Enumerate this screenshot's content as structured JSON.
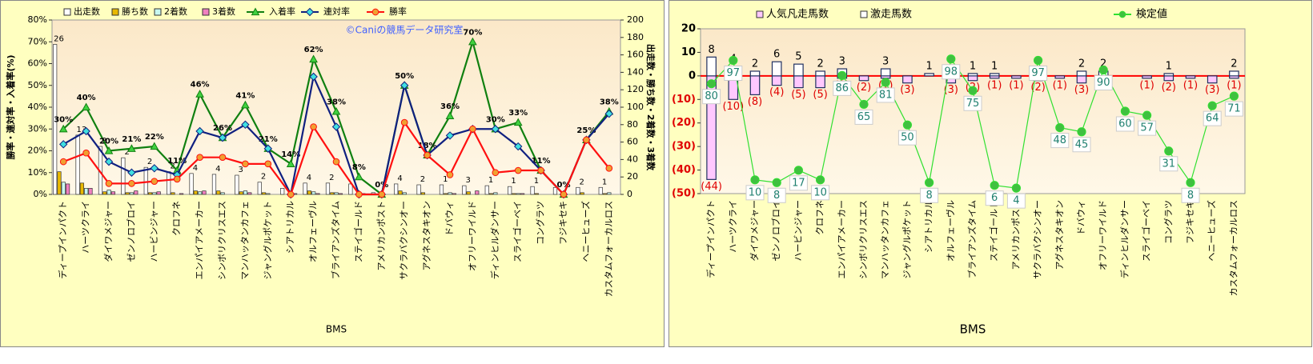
{
  "chart_data": [
    {
      "type": "combo",
      "watermark": "©Caniの競馬データ研究室",
      "xlabel": "BMS",
      "ylabel": "勝率・連対率・入着率(%)",
      "y2label": "出走数・勝ち数・2着数・3着数",
      "categories": [
        "ディープインパクト",
        "ハーツクライ",
        "ダイワメジャー",
        "ゼンノロブロイ",
        "ハービンジャー",
        "クロフネ",
        "エンパイアメーカー",
        "シンボリクリスエス",
        "マンハッタンカフェ",
        "ジャングルポケット",
        "シアトリカル",
        "オルフェーヴル",
        "ブライアンズタイム",
        "ステイゴールド",
        "アメリカンポスト",
        "サクラバクシンオー",
        "アグネスタキオン",
        "ドバウィ",
        "オフリーワイルド",
        "ディンヒルダンサー",
        "スライゴーベイ",
        "コングラツ",
        "フジキセキ",
        "ヘニーヒューズ",
        "カスタムフォーカルロス"
      ],
      "ylim": [
        0,
        80
      ],
      "yticks": [
        {
          "value": 0,
          "label": "0%"
        },
        {
          "value": 10,
          "label": "10%"
        },
        {
          "value": 20,
          "label": "20%"
        },
        {
          "value": 30,
          "label": "30%"
        },
        {
          "value": 40,
          "label": "40%"
        },
        {
          "value": 50,
          "label": "50%"
        },
        {
          "value": 60,
          "label": "60%"
        },
        {
          "value": 70,
          "label": "70%"
        },
        {
          "value": 80,
          "label": "80%"
        }
      ],
      "y2lim": [
        0,
        200
      ],
      "y2ticks": [
        0,
        20,
        40,
        60,
        80,
        100,
        120,
        140,
        160,
        180,
        200
      ],
      "series": [
        {
          "name": "出走数",
          "kind": "bar",
          "axis": "y2",
          "color": "#ffffff",
          "values": [
            172,
            68,
            55,
            42,
            31,
            26,
            24,
            23,
            22,
            14,
            7,
            13,
            13,
            12,
            2,
            12,
            11,
            11,
            10,
            10,
            9,
            9,
            8,
            8,
            8
          ]
        },
        {
          "name": "勝ち数",
          "kind": "bar",
          "axis": "y2",
          "color": "#e8b800",
          "values": [
            26,
            13,
            3,
            2,
            2,
            2,
            4,
            4,
            3,
            2,
            0,
            4,
            2,
            0,
            0,
            4,
            2,
            1,
            3,
            1,
            1,
            1,
            0,
            2,
            1
          ]
        },
        {
          "name": "2着数",
          "kind": "bar",
          "axis": "y2",
          "color": "#c8f8f0",
          "values": [
            14,
            7,
            5,
            2,
            2,
            0,
            3,
            2,
            4,
            1,
            0,
            3,
            2,
            0,
            0,
            2,
            0,
            2,
            0,
            2,
            1,
            0,
            0,
            0,
            2
          ]
        },
        {
          "name": "3着数",
          "kind": "bar",
          "axis": "y2",
          "color": "#f080c0",
          "values": [
            12,
            7,
            3,
            4,
            3,
            1,
            4,
            0,
            2,
            0,
            1,
            1,
            1,
            1,
            0,
            0,
            0,
            1,
            4,
            0,
            1,
            0,
            0,
            0,
            0
          ]
        },
        {
          "name": "入着率",
          "kind": "line",
          "marker": "triangle",
          "color": "#108010",
          "fill": "#40d040",
          "values": [
            30,
            40,
            20,
            21,
            22,
            11,
            46,
            26,
            41,
            21,
            14,
            62,
            38,
            8,
            0,
            50,
            18,
            36,
            70,
            30,
            33,
            11,
            0,
            25,
            38
          ],
          "value_labels": [
            "30%",
            "40%",
            "20%",
            "21%",
            "22%",
            "11%",
            "46%",
            "26%",
            "41%",
            "21%",
            "14%",
            "62%",
            "38%",
            "8%",
            "0%",
            "50%",
            "18%",
            "36%",
            "70%",
            "30%",
            "33%",
            "11%",
            "0%",
            "25%",
            "38%"
          ]
        },
        {
          "name": "連対率",
          "kind": "line",
          "marker": "diamond",
          "color": "#102080",
          "fill": "#40e0e0",
          "values": [
            23,
            29,
            15,
            10,
            12,
            9,
            29,
            26,
            32,
            21,
            0,
            54,
            31,
            0,
            0,
            50,
            18,
            27,
            30,
            30,
            22,
            11,
            0,
            25,
            37
          ]
        },
        {
          "name": "勝率",
          "kind": "line",
          "marker": "circle",
          "color": "#ff1010",
          "fill": "#f0a030",
          "values": [
            15,
            19,
            5,
            5,
            6,
            7,
            17,
            17,
            14,
            14,
            0,
            31,
            15,
            0,
            0,
            33,
            18,
            9,
            30,
            10,
            11,
            11,
            0,
            25,
            12
          ]
        }
      ]
    },
    {
      "type": "combo",
      "xlabel": "BMS",
      "categories": [
        "ディープインパクト",
        "ハーツクライ",
        "ダイワメジャー",
        "ゼンノロブロイ",
        "ハービンジャー",
        "クロフネ",
        "エンパイアメーカー",
        "シンボリクリスエス",
        "マンハッタンカフェ",
        "ジャングルポケット",
        "シアトリカル",
        "オルフェーヴル",
        "ブライアンズタイム",
        "ステイゴールド",
        "アメリカンポスト",
        "サクラバクシンオー",
        "アグネスタキオン",
        "ドバウィ",
        "オフリーワイルド",
        "ディンヒルダンサー",
        "スライゴーベイ",
        "コングラツ",
        "フジキセキ",
        "ヘニーヒューズ",
        "カスタムフォーカルロス"
      ],
      "ylim": [
        -50,
        20
      ],
      "yticks": [
        {
          "value": -50,
          "label": "(50)"
        },
        {
          "value": -40,
          "label": "(40)"
        },
        {
          "value": -30,
          "label": "(30)"
        },
        {
          "value": -20,
          "label": "(20)"
        },
        {
          "value": -10,
          "label": "(10)"
        },
        0,
        10,
        20
      ],
      "y2lim": [
        0,
        120
      ],
      "series": [
        {
          "name": "人気凡走馬数",
          "kind": "bar",
          "color": "#ffc8ff",
          "values": [
            -44,
            -10,
            -8,
            -4,
            -5,
            -5,
            -1,
            -2,
            -1,
            -3,
            0,
            -3,
            -2,
            -1,
            -1,
            -2,
            -1,
            -3,
            -1,
            0,
            -1,
            -2,
            -1,
            -3,
            -1
          ],
          "value_labels": [
            "(44)",
            "(10)",
            "(8)",
            "(4)",
            "(5)",
            "(5)",
            "(1)",
            "(2)",
            "(1)",
            "(3)",
            null,
            "(3)",
            "(2)",
            "(1)",
            "(1)",
            "(2)",
            "(1)",
            "(3)",
            "(1)",
            null,
            "(1)",
            "(2)",
            "(1)",
            "(3)",
            "(1)"
          ]
        },
        {
          "name": "激走馬数",
          "kind": "bar",
          "color": "#ffffff",
          "values": [
            8,
            4,
            2,
            6,
            5,
            2,
            3,
            0,
            3,
            0,
            1,
            0,
            1,
            1,
            0,
            0,
            0,
            2,
            2,
            0,
            0,
            1,
            0,
            0,
            2
          ]
        },
        {
          "name": "検定値",
          "kind": "line",
          "axis": "y2",
          "marker": "circle",
          "color": "#30e030",
          "fill": "#40c040",
          "values": [
            80,
            97,
            10,
            8,
            17,
            10,
            86,
            65,
            81,
            50,
            8,
            98,
            75,
            6,
            4,
            97,
            48,
            45,
            90,
            60,
            57,
            31,
            8,
            64,
            71
          ]
        }
      ]
    }
  ]
}
